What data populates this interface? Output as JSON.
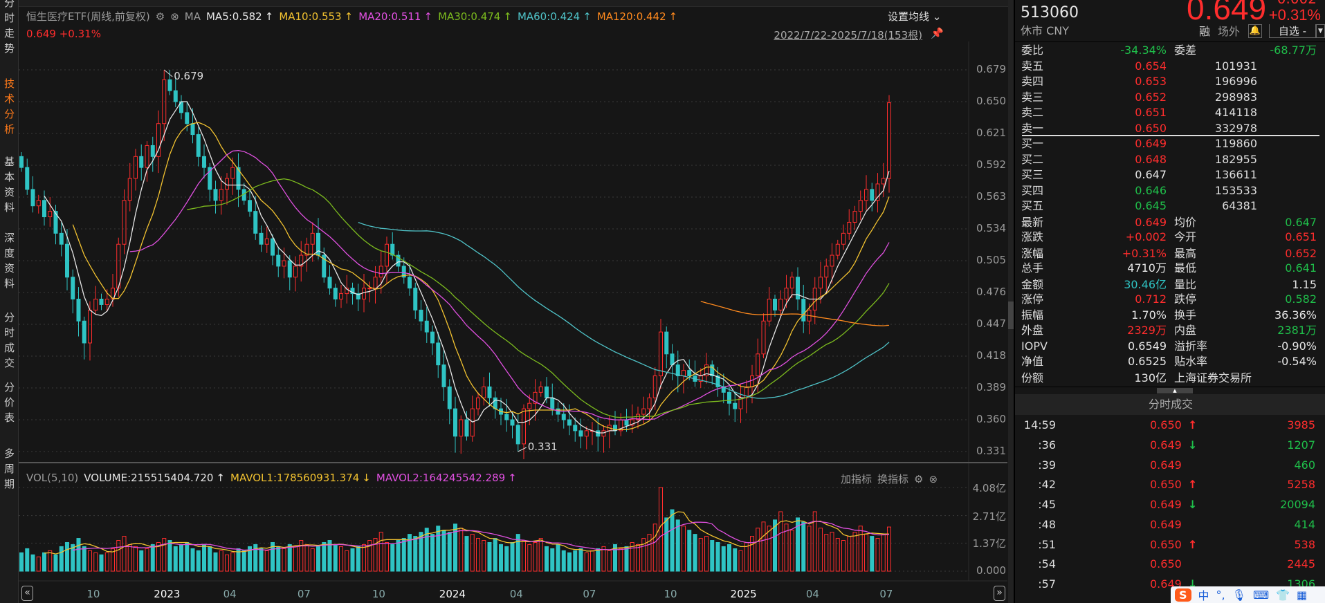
{
  "sidebar": {
    "tabs": [
      {
        "label": "分时走势",
        "active": false
      },
      {
        "label": "技术分析",
        "active": true
      },
      {
        "label": "基本资料",
        "active": false
      },
      {
        "label": "深度资料",
        "active": false
      },
      {
        "label": "分时成交",
        "active": false
      },
      {
        "label": "分价表",
        "active": false
      },
      {
        "label": "多周期",
        "active": false
      }
    ]
  },
  "chart_header": {
    "title": "恒生医疗ETF(周线,前复权)",
    "ma_label": "MA",
    "mas": [
      {
        "text": "MA5:0.582",
        "arrow": "↑",
        "color": "#e6e6e6"
      },
      {
        "text": "MA10:0.553",
        "arrow": "↑",
        "color": "#f2c230"
      },
      {
        "text": "MA20:0.511",
        "arrow": "↑",
        "color": "#e050e0"
      },
      {
        "text": "MA30:0.474",
        "arrow": "↑",
        "color": "#7cbb1e"
      },
      {
        "text": "MA60:0.424",
        "arrow": "↑",
        "color": "#4fc3c8"
      },
      {
        "text": "MA120:0.442",
        "arrow": "↑",
        "color": "#ff8a1e"
      }
    ],
    "price": "0.649",
    "change_pct": "+0.31%",
    "set_ma": "设置均线 ⌄",
    "range": "2022/7/22-2025/7/18(153根)"
  },
  "volume_header": {
    "label": "VOL(5,10)",
    "items": [
      {
        "text": "VOLUME:215515404.720",
        "arrow": "↑",
        "color": "#e6e6e6"
      },
      {
        "text": "MAVOL1:178560931.374",
        "arrow": "↓",
        "color": "#f2c230"
      },
      {
        "text": "MAVOL2:164245542.289",
        "arrow": "↑",
        "color": "#e050e0"
      }
    ],
    "add_indicator": "加指标",
    "switch_indicator": "换指标"
  },
  "colors": {
    "up": "#ff2d2d",
    "down": "#2fc4c4",
    "bg": "#161616",
    "grid": "#3a3a3a"
  },
  "chart_data": {
    "type": "candlestick",
    "period": "weekly",
    "price_axis_ticks": [
      "0.679",
      "0.650",
      "0.621",
      "0.592",
      "0.563",
      "0.534",
      "0.505",
      "0.476",
      "0.447",
      "0.418",
      "0.389",
      "0.360",
      "0.331"
    ],
    "price_range": [
      0.331,
      0.679
    ],
    "volume_axis_ticks": [
      "4.08亿",
      "2.71亿",
      "1.37亿",
      "0.000"
    ],
    "volume_unit": "亿",
    "x_ticks": [
      "10",
      "2023",
      "04",
      "07",
      "10",
      "2024",
      "04",
      "07",
      "10",
      "2025",
      "04",
      "07"
    ],
    "annotations": [
      {
        "label": "0.679",
        "type": "high",
        "value": 0.679
      },
      {
        "label": "0.331",
        "type": "low",
        "value": 0.331
      }
    ],
    "ma_periods": [
      5,
      10,
      20,
      30,
      60,
      120
    ],
    "mavol_periods": [
      5,
      10
    ],
    "close": [
      0.59,
      0.57,
      0.555,
      0.56,
      0.545,
      0.55,
      0.53,
      0.52,
      0.49,
      0.47,
      0.45,
      0.43,
      0.46,
      0.47,
      0.465,
      0.47,
      0.48,
      0.52,
      0.56,
      0.58,
      0.6,
      0.59,
      0.61,
      0.6,
      0.63,
      0.67,
      0.66,
      0.65,
      0.64,
      0.63,
      0.62,
      0.6,
      0.59,
      0.57,
      0.56,
      0.57,
      0.58,
      0.59,
      0.57,
      0.56,
      0.55,
      0.53,
      0.52,
      0.525,
      0.51,
      0.5,
      0.505,
      0.49,
      0.5,
      0.51,
      0.52,
      0.53,
      0.51,
      0.49,
      0.48,
      0.47,
      0.475,
      0.48,
      0.475,
      0.47,
      0.48,
      0.48,
      0.49,
      0.5,
      0.52,
      0.51,
      0.5,
      0.49,
      0.48,
      0.46,
      0.45,
      0.44,
      0.43,
      0.41,
      0.39,
      0.37,
      0.345,
      0.36,
      0.345,
      0.37,
      0.38,
      0.39,
      0.38,
      0.37,
      0.365,
      0.36,
      0.355,
      0.338,
      0.37,
      0.375,
      0.385,
      0.39,
      0.38,
      0.37,
      0.365,
      0.36,
      0.355,
      0.35,
      0.345,
      0.35,
      0.35,
      0.345,
      0.35,
      0.355,
      0.35,
      0.36,
      0.355,
      0.36,
      0.365,
      0.37,
      0.38,
      0.4,
      0.44,
      0.42,
      0.41,
      0.4,
      0.405,
      0.4,
      0.395,
      0.4,
      0.41,
      0.4,
      0.39,
      0.385,
      0.375,
      0.37,
      0.38,
      0.39,
      0.4,
      0.42,
      0.45,
      0.47,
      0.46,
      0.47,
      0.48,
      0.49,
      0.47,
      0.45,
      0.46,
      0.48,
      0.49,
      0.5,
      0.51,
      0.52,
      0.53,
      0.54,
      0.55,
      0.56,
      0.57,
      0.56,
      0.575,
      0.58,
      0.649
    ],
    "volume": [
      0.9,
      1.1,
      0.8,
      0.7,
      0.9,
      1.0,
      0.8,
      1.2,
      1.4,
      1.3,
      1.6,
      1.2,
      1.0,
      0.9,
      0.8,
      0.9,
      1.1,
      1.5,
      1.7,
      1.3,
      1.2,
      1.0,
      1.1,
      1.3,
      1.4,
      1.6,
      1.5,
      1.2,
      1.3,
      1.4,
      1.1,
      1.0,
      1.3,
      1.2,
      0.9,
      1.0,
      0.8,
      0.9,
      1.1,
      1.0,
      1.2,
      1.3,
      1.1,
      1.0,
      1.4,
      1.2,
      1.1,
      1.3,
      1.2,
      1.5,
      1.3,
      1.1,
      1.2,
      1.4,
      1.5,
      1.3,
      1.2,
      1.0,
      1.1,
      1.2,
      1.3,
      1.5,
      1.6,
      1.9,
      1.4,
      1.3,
      1.5,
      1.6,
      1.8,
      1.7,
      1.9,
      2.1,
      1.8,
      2.2,
      2.0,
      1.9,
      2.3,
      2.1,
      1.7,
      1.8,
      1.6,
      1.5,
      1.4,
      1.6,
      1.3,
      1.2,
      1.4,
      1.8,
      1.5,
      1.3,
      1.4,
      1.6,
      1.2,
      1.1,
      1.3,
      1.0,
      0.9,
      1.0,
      1.1,
      0.9,
      1.0,
      1.1,
      1.2,
      1.0,
      1.3,
      1.1,
      1.2,
      1.4,
      1.3,
      1.6,
      1.8,
      2.3,
      4.08,
      2.6,
      3.0,
      2.5,
      2.2,
      2.0,
      1.8,
      1.6,
      1.7,
      1.5,
      1.4,
      1.2,
      1.3,
      1.1,
      1.0,
      1.4,
      1.7,
      2.1,
      2.4,
      2.2,
      2.5,
      2.9,
      2.3,
      2.0,
      2.6,
      2.4,
      2.2,
      2.9,
      2.1,
      1.8,
      1.9,
      1.6,
      1.5,
      1.7,
      1.9,
      2.2,
      1.8,
      1.7,
      1.6,
      1.8,
      2.155
    ]
  },
  "quote": {
    "code": "513060",
    "status": "休市 CNY",
    "price": "0.649",
    "change_pct": "+0.31%",
    "change_cut": "0.002",
    "rong": "融",
    "changwai": "场外",
    "watchlist": "自选 -",
    "weibi": {
      "label": "委比",
      "value": "-34.34%",
      "label2": "委差",
      "value2": "-68.77万"
    },
    "asks": [
      {
        "label": "卖五",
        "price": "0.654",
        "vol": "101931",
        "color": "red"
      },
      {
        "label": "卖四",
        "price": "0.653",
        "vol": "196996",
        "color": "red"
      },
      {
        "label": "卖三",
        "price": "0.652",
        "vol": "298983",
        "color": "red"
      },
      {
        "label": "卖二",
        "price": "0.651",
        "vol": "414118",
        "color": "red"
      },
      {
        "label": "卖一",
        "price": "0.650",
        "vol": "332978",
        "color": "red"
      }
    ],
    "bids": [
      {
        "label": "买一",
        "price": "0.649",
        "vol": "119860",
        "color": "red"
      },
      {
        "label": "买二",
        "price": "0.648",
        "vol": "182955",
        "color": "red"
      },
      {
        "label": "买三",
        "price": "0.647",
        "vol": "136611",
        "color": "white"
      },
      {
        "label": "买四",
        "price": "0.646",
        "vol": "153533",
        "color": "green"
      },
      {
        "label": "买五",
        "price": "0.645",
        "vol": "64381",
        "color": "green"
      }
    ],
    "stats": [
      {
        "l1": "最新",
        "v1": "0.649",
        "c1": "red",
        "l2": "均价",
        "v2": "0.647",
        "c2": "green"
      },
      {
        "l1": "涨跌",
        "v1": "+0.002",
        "c1": "red",
        "l2": "今开",
        "v2": "0.651",
        "c2": "red"
      },
      {
        "l1": "涨幅",
        "v1": "+0.31%",
        "c1": "red",
        "l2": "最高",
        "v2": "0.652",
        "c2": "red"
      },
      {
        "l1": "总手",
        "v1": "4710万",
        "c1": "white",
        "l2": "最低",
        "v2": "0.641",
        "c2": "green"
      },
      {
        "l1": "金额",
        "v1": "30.46亿",
        "c1": "cyan",
        "l2": "量比",
        "v2": "1.15",
        "c2": "white"
      },
      {
        "l1": "涨停",
        "v1": "0.712",
        "c1": "red",
        "l2": "跌停",
        "v2": "0.582",
        "c2": "green"
      },
      {
        "l1": "振幅",
        "v1": "1.70%",
        "c1": "white",
        "l2": "换手",
        "v2": "36.36%",
        "c2": "white"
      },
      {
        "l1": "外盘",
        "v1": "2329万",
        "c1": "red",
        "l2": "内盘",
        "v2": "2381万",
        "c2": "green"
      },
      {
        "l1": "IOPV",
        "v1": "0.6549",
        "c1": "white",
        "l2": "溢折率",
        "v2": "-0.90%",
        "c2": "white"
      },
      {
        "l1": "净值",
        "v1": "0.6525",
        "c1": "white",
        "l2": "贴水率",
        "v2": "-0.54%",
        "c2": "white"
      },
      {
        "l1": "份额",
        "v1": "130亿",
        "c1": "white",
        "l2": "上海证券交易所",
        "v2": "",
        "c2": "white"
      }
    ]
  },
  "ticks": {
    "title": "分时成交",
    "rows": [
      {
        "time": "14:59",
        "price": "0.650",
        "arrow": "up",
        "vol": "3985",
        "vc": "red"
      },
      {
        "time": ":36",
        "price": "0.649",
        "arrow": "down",
        "vol": "1207",
        "vc": "green"
      },
      {
        "time": ":39",
        "price": "0.649",
        "arrow": "",
        "vol": "460",
        "vc": "green"
      },
      {
        "time": ":42",
        "price": "0.650",
        "arrow": "up",
        "vol": "5258",
        "vc": "red"
      },
      {
        "time": ":45",
        "price": "0.649",
        "arrow": "down",
        "vol": "20094",
        "vc": "green"
      },
      {
        "time": ":48",
        "price": "0.649",
        "arrow": "",
        "vol": "414",
        "vc": "green"
      },
      {
        "time": ":51",
        "price": "0.650",
        "arrow": "up",
        "vol": "538",
        "vc": "red"
      },
      {
        "time": ":54",
        "price": "0.650",
        "arrow": "",
        "vol": "2445",
        "vc": "red"
      },
      {
        "time": ":57",
        "price": "0.649",
        "arrow": "down",
        "vol": "1306",
        "vc": "green"
      }
    ]
  },
  "ime": {
    "lang": "中",
    "punct": "°,"
  }
}
